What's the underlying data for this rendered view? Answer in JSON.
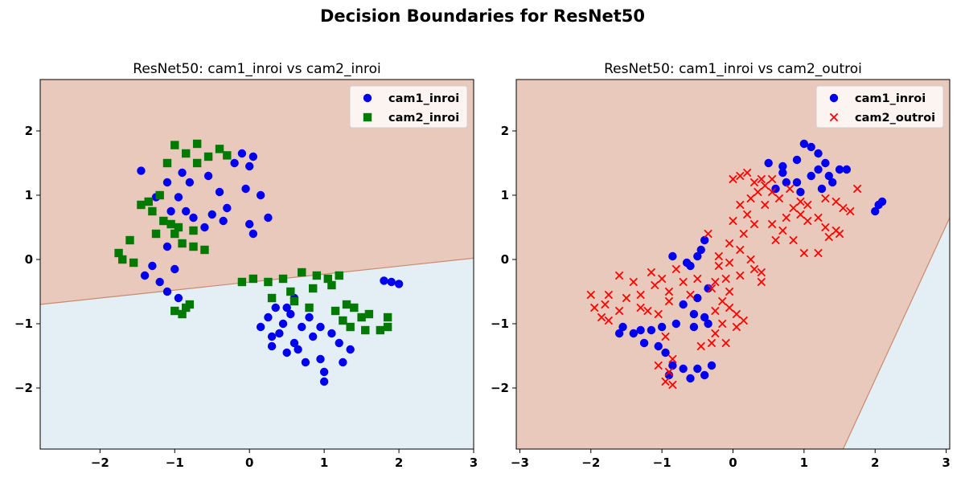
{
  "suptitle": "Decision Boundaries for ResNet50",
  "colors": {
    "upper_region": "#e8c9bb",
    "lower_region": "#e3eef5",
    "boundary": "#c98a70",
    "blue": "#0000ee",
    "green": "#007a00",
    "red": "#ff0000"
  },
  "chart_data": [
    {
      "type": "scatter",
      "title": "ResNet50: cam1_inroi vs cam2_inroi",
      "xlim": [
        -2.8,
        3.0
      ],
      "ylim": [
        -2.95,
        2.8
      ],
      "xticks": [
        -2,
        -1,
        0,
        1,
        2,
        3
      ],
      "yticks": [
        -2,
        -1,
        0,
        1,
        2
      ],
      "legend_position": "upper-right",
      "decision_boundary": {
        "x": [
          -2.8,
          3.0
        ],
        "y": [
          -0.7,
          0.02
        ]
      },
      "series": [
        {
          "name": "cam1_inroi",
          "marker": "circle",
          "color": "#0000ee",
          "points": [
            [
              -1.45,
              1.38
            ],
            [
              -1.1,
              1.2
            ],
            [
              -0.9,
              1.35
            ],
            [
              -0.8,
              1.2
            ],
            [
              -0.55,
              1.3
            ],
            [
              -0.4,
              1.05
            ],
            [
              -0.2,
              1.5
            ],
            [
              0.05,
              1.6
            ],
            [
              0,
              1.45
            ],
            [
              -0.1,
              1.65
            ],
            [
              0.15,
              1.0
            ],
            [
              0.25,
              0.65
            ],
            [
              -0.3,
              0.8
            ],
            [
              -0.6,
              0.5
            ],
            [
              -0.75,
              0.65
            ],
            [
              -0.85,
              0.75
            ],
            [
              -0.95,
              0.97
            ],
            [
              -1.05,
              0.75
            ],
            [
              -0.5,
              0.7
            ],
            [
              -0.35,
              0.6
            ],
            [
              0,
              0.55
            ],
            [
              0.05,
              0.4
            ],
            [
              -0.05,
              1.1
            ],
            [
              -1.25,
              0.97
            ],
            [
              -1.1,
              0.2
            ],
            [
              -1.3,
              -0.1
            ],
            [
              -1.0,
              -0.15
            ],
            [
              -1.1,
              -0.5
            ],
            [
              -0.95,
              -0.6
            ],
            [
              -1.4,
              -0.25
            ],
            [
              -1.2,
              -0.35
            ],
            [
              1.8,
              -0.33
            ],
            [
              1.9,
              -0.35
            ],
            [
              2.0,
              -0.38
            ],
            [
              0.35,
              -0.75
            ],
            [
              0.55,
              -0.85
            ],
            [
              0.45,
              -1.0
            ],
            [
              0.7,
              -1.05
            ],
            [
              0.85,
              -1.2
            ],
            [
              0.6,
              -1.3
            ],
            [
              0.4,
              -1.15
            ],
            [
              0.3,
              -1.2
            ],
            [
              0.5,
              -1.45
            ],
            [
              0.75,
              -1.6
            ],
            [
              0.95,
              -1.55
            ],
            [
              1.0,
              -1.75
            ],
            [
              1.0,
              -1.9
            ],
            [
              1.25,
              -1.6
            ],
            [
              1.35,
              -1.4
            ],
            [
              1.2,
              -1.3
            ],
            [
              1.1,
              -1.15
            ],
            [
              0.95,
              -1.05
            ],
            [
              0.8,
              -0.9
            ],
            [
              0.25,
              -0.9
            ],
            [
              0.6,
              -0.6
            ],
            [
              0.5,
              -0.75
            ],
            [
              0.65,
              -1.4
            ],
            [
              0.15,
              -1.05
            ],
            [
              0.3,
              -1.35
            ]
          ]
        },
        {
          "name": "cam2_inroi",
          "marker": "square",
          "color": "#007a00",
          "points": [
            [
              -1.0,
              1.78
            ],
            [
              -0.85,
              1.65
            ],
            [
              -0.7,
              1.8
            ],
            [
              -0.55,
              1.6
            ],
            [
              -0.4,
              1.72
            ],
            [
              -0.3,
              1.62
            ],
            [
              -0.7,
              1.5
            ],
            [
              -1.1,
              1.5
            ],
            [
              -1.2,
              1.0
            ],
            [
              -1.35,
              0.9
            ],
            [
              -1.45,
              0.85
            ],
            [
              -1.3,
              0.75
            ],
            [
              -1.15,
              0.6
            ],
            [
              -1.05,
              0.55
            ],
            [
              -1.0,
              0.4
            ],
            [
              -0.9,
              0.25
            ],
            [
              -0.75,
              0.2
            ],
            [
              -0.6,
              0.15
            ],
            [
              -1.6,
              0.3
            ],
            [
              -1.75,
              0.1
            ],
            [
              -1.7,
              0.0
            ],
            [
              -1.55,
              -0.05
            ],
            [
              -1.25,
              0.4
            ],
            [
              -0.95,
              0.5
            ],
            [
              -0.75,
              0.45
            ],
            [
              -0.85,
              -0.75
            ],
            [
              -0.9,
              -0.85
            ],
            [
              -0.8,
              -0.7
            ],
            [
              -1.0,
              -0.8
            ],
            [
              -0.1,
              -0.35
            ],
            [
              0.05,
              -0.3
            ],
            [
              0.25,
              -0.35
            ],
            [
              0.45,
              -0.3
            ],
            [
              0.7,
              -0.2
            ],
            [
              0.9,
              -0.25
            ],
            [
              1.05,
              -0.3
            ],
            [
              1.2,
              -0.25
            ],
            [
              1.1,
              -0.4
            ],
            [
              0.85,
              -0.45
            ],
            [
              0.55,
              -0.5
            ],
            [
              0.3,
              -0.6
            ],
            [
              0.6,
              -0.65
            ],
            [
              0.8,
              -0.75
            ],
            [
              1.15,
              -0.8
            ],
            [
              1.3,
              -0.7
            ],
            [
              1.4,
              -0.75
            ],
            [
              1.5,
              -0.9
            ],
            [
              1.35,
              -1.05
            ],
            [
              1.55,
              -1.1
            ],
            [
              1.75,
              -1.1
            ],
            [
              1.85,
              -1.05
            ],
            [
              1.85,
              -0.9
            ],
            [
              1.25,
              -0.95
            ],
            [
              1.6,
              -0.85
            ]
          ]
        }
      ]
    },
    {
      "type": "scatter",
      "title": "ResNet50: cam1_inroi vs cam2_outroi",
      "xlim": [
        -3.05,
        3.05
      ],
      "ylim": [
        -2.95,
        2.8
      ],
      "xticks": [
        -3,
        -2,
        -1,
        0,
        1,
        2,
        3
      ],
      "yticks": [
        -2,
        -1,
        0,
        1,
        2
      ],
      "legend_position": "upper-right",
      "decision_boundary": {
        "x": [
          1.55,
          3.05
        ],
        "y": [
          -2.95,
          0.65
        ]
      },
      "series": [
        {
          "name": "cam1_inroi",
          "marker": "circle",
          "color": "#0000ee",
          "points": [
            [
              0.5,
              1.5
            ],
            [
              0.7,
              1.45
            ],
            [
              0.9,
              1.55
            ],
            [
              1.0,
              1.8
            ],
            [
              1.1,
              1.75
            ],
            [
              1.2,
              1.65
            ],
            [
              1.3,
              1.5
            ],
            [
              1.35,
              1.3
            ],
            [
              1.5,
              1.4
            ],
            [
              1.6,
              1.4
            ],
            [
              1.4,
              1.2
            ],
            [
              1.25,
              1.1
            ],
            [
              1.1,
              1.3
            ],
            [
              0.9,
              1.2
            ],
            [
              0.7,
              1.35
            ],
            [
              0.6,
              1.1
            ],
            [
              0.75,
              1.2
            ],
            [
              0.95,
              1.05
            ],
            [
              1.2,
              1.4
            ],
            [
              2.0,
              0.75
            ],
            [
              2.05,
              0.85
            ],
            [
              2.1,
              0.9
            ],
            [
              -0.4,
              0.3
            ],
            [
              -0.45,
              0.15
            ],
            [
              -0.5,
              0.05
            ],
            [
              -0.65,
              -0.05
            ],
            [
              -0.85,
              0.05
            ],
            [
              -0.6,
              -0.1
            ],
            [
              -0.35,
              -0.45
            ],
            [
              -0.5,
              -0.6
            ],
            [
              -0.7,
              -0.7
            ],
            [
              -0.55,
              -0.85
            ],
            [
              -0.4,
              -0.9
            ],
            [
              -0.35,
              -1.0
            ],
            [
              -0.55,
              -1.05
            ],
            [
              -0.8,
              -1.0
            ],
            [
              -1.0,
              -1.05
            ],
            [
              -1.15,
              -1.1
            ],
            [
              -1.3,
              -1.1
            ],
            [
              -1.4,
              -1.15
            ],
            [
              -1.55,
              -1.05
            ],
            [
              -1.6,
              -1.15
            ],
            [
              -1.25,
              -1.3
            ],
            [
              -1.05,
              -1.35
            ],
            [
              -0.95,
              -1.45
            ],
            [
              -0.85,
              -1.65
            ],
            [
              -0.7,
              -1.7
            ],
            [
              -0.5,
              -1.7
            ],
            [
              -0.3,
              -1.65
            ],
            [
              -0.4,
              -1.8
            ],
            [
              -0.9,
              -1.8
            ],
            [
              -0.6,
              -1.85
            ]
          ]
        },
        {
          "name": "cam2_outroi",
          "marker": "x",
          "color": "#ff0000",
          "points": [
            [
              0.0,
              1.25
            ],
            [
              0.1,
              1.3
            ],
            [
              0.2,
              1.35
            ],
            [
              0.3,
              1.2
            ],
            [
              0.35,
              1.05
            ],
            [
              0.45,
              1.15
            ],
            [
              0.55,
              1.05
            ],
            [
              0.65,
              0.95
            ],
            [
              0.8,
              1.1
            ],
            [
              0.85,
              0.8
            ],
            [
              0.95,
              0.7
            ],
            [
              1.05,
              0.6
            ],
            [
              1.2,
              0.65
            ],
            [
              1.3,
              0.5
            ],
            [
              1.45,
              0.45
            ],
            [
              1.55,
              0.8
            ],
            [
              1.65,
              0.75
            ],
            [
              1.75,
              1.1
            ],
            [
              0.1,
              0.85
            ],
            [
              0.2,
              0.7
            ],
            [
              0.0,
              0.6
            ],
            [
              0.25,
              0.95
            ],
            [
              0.45,
              0.85
            ],
            [
              0.55,
              0.55
            ],
            [
              0.7,
              0.45
            ],
            [
              0.85,
              0.3
            ],
            [
              1.0,
              0.1
            ],
            [
              1.2,
              0.1
            ],
            [
              1.35,
              0.35
            ],
            [
              1.5,
              0.4
            ],
            [
              0.75,
              0.65
            ],
            [
              0.6,
              0.3
            ],
            [
              0.95,
              0.9
            ],
            [
              1.05,
              0.85
            ],
            [
              1.3,
              0.95
            ],
            [
              1.45,
              0.9
            ],
            [
              0.4,
              1.25
            ],
            [
              0.55,
              1.25
            ],
            [
              0.3,
              0.55
            ],
            [
              0.15,
              0.4
            ],
            [
              -0.35,
              0.4
            ],
            [
              -0.2,
              0.05
            ],
            [
              -0.05,
              0.25
            ],
            [
              0.1,
              0.15
            ],
            [
              0.25,
              0.0
            ],
            [
              0.3,
              -0.15
            ],
            [
              0.4,
              -0.2
            ],
            [
              0.1,
              -0.25
            ],
            [
              -0.1,
              -0.3
            ],
            [
              -0.25,
              -0.35
            ],
            [
              -0.3,
              -0.45
            ],
            [
              -0.05,
              -0.5
            ],
            [
              -0.15,
              -0.65
            ],
            [
              -0.05,
              -0.75
            ],
            [
              0.05,
              -0.85
            ],
            [
              0.15,
              -0.95
            ],
            [
              0.05,
              -1.05
            ],
            [
              -0.15,
              -1.0
            ],
            [
              -0.25,
              -1.15
            ],
            [
              -0.3,
              -1.3
            ],
            [
              -0.45,
              -1.35
            ],
            [
              -0.25,
              -0.8
            ],
            [
              -0.5,
              -0.3
            ],
            [
              -0.7,
              -0.35
            ],
            [
              -0.9,
              -0.5
            ],
            [
              -1.1,
              -0.4
            ],
            [
              -1.3,
              -0.55
            ],
            [
              -1.5,
              -0.6
            ],
            [
              -1.6,
              -0.8
            ],
            [
              -1.8,
              -0.7
            ],
            [
              -1.85,
              -0.9
            ],
            [
              -2.0,
              -0.55
            ],
            [
              -1.95,
              -0.75
            ],
            [
              -1.75,
              -0.95
            ],
            [
              -1.3,
              -0.75
            ],
            [
              -1.15,
              -0.2
            ],
            [
              -1.0,
              -0.3
            ],
            [
              -0.8,
              -0.15
            ],
            [
              -0.9,
              -0.65
            ],
            [
              -1.05,
              -0.85
            ],
            [
              -0.85,
              -1.55
            ],
            [
              -0.9,
              -1.75
            ],
            [
              -0.95,
              -1.9
            ],
            [
              -0.85,
              -1.95
            ],
            [
              -1.05,
              -1.65
            ],
            [
              -0.6,
              -0.55
            ],
            [
              -0.2,
              -0.1
            ],
            [
              -0.05,
              -0.05
            ],
            [
              -1.4,
              -0.35
            ],
            [
              -1.6,
              -0.25
            ],
            [
              -1.2,
              -0.8
            ],
            [
              -1.75,
              -0.55
            ],
            [
              -0.95,
              -1.2
            ],
            [
              -0.1,
              -1.3
            ],
            [
              0.4,
              -0.35
            ]
          ]
        }
      ]
    }
  ]
}
